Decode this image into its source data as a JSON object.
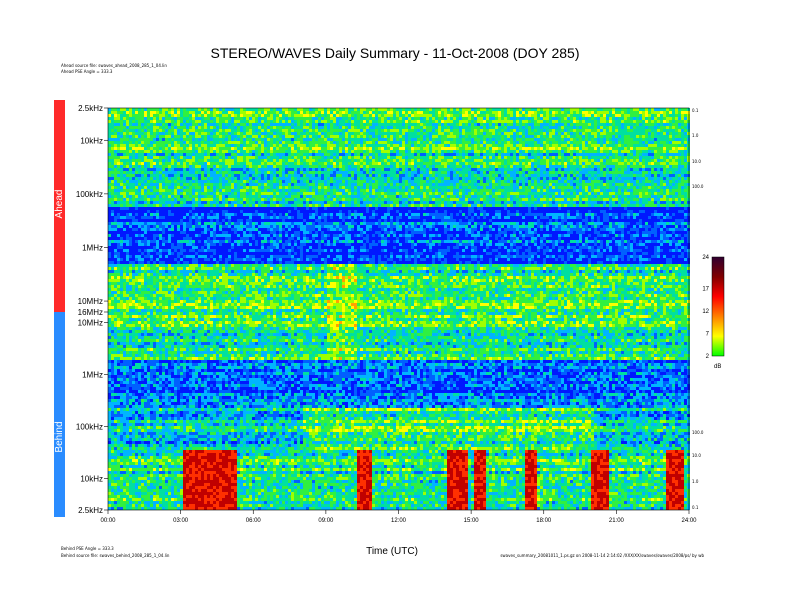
{
  "chart_data": {
    "type": "heatmap",
    "title": "STEREO/WAVES Daily Summary - 11-Oct-2008 (DOY 285)",
    "xlabel": "Time (UTC)",
    "xticks": [
      "00:00",
      "03:00",
      "06:00",
      "09:00",
      "12:00",
      "15:00",
      "18:00",
      "21:00",
      "24:00"
    ],
    "xlim_hours": [
      0,
      24
    ],
    "panels": [
      {
        "name": "Ahead",
        "color": "#ff2a2a",
        "yticks": [
          "2.5kHz",
          "10kHz",
          "100kHz",
          "1MHz",
          "10MHz",
          "16MHz"
        ],
        "yscale": "log",
        "ylim_hz": [
          2500,
          16000000
        ],
        "info_lines": [
          "Ahead source file: swaves_ahead_2008_285_1_04.lin",
          "Ahead PSE Angle = 333.3"
        ],
        "side_ticks": [
          "0.1",
          "1.0",
          "10.0",
          "100.0"
        ]
      },
      {
        "name": "Behind",
        "color": "#2a8cff",
        "yticks": [
          "10MHz",
          "1MHz",
          "100kHz",
          "10kHz",
          "2.5kHz"
        ],
        "yscale": "log",
        "ylim_hz": [
          2500,
          16000000
        ],
        "info_lines": [
          "Behind PSE Angle = 333.3",
          "Behind source file: swaves_behind_2008_285_1_04.lin"
        ],
        "side_ticks": [
          "100.0",
          "10.0",
          "1.0",
          "0.1"
        ]
      }
    ],
    "colorbar": {
      "unit": "dB",
      "ticks": [
        "24",
        "17",
        "12",
        "7",
        "2"
      ],
      "range": [
        2,
        24
      ],
      "colors": [
        "#00ff00",
        "#ffff00",
        "#ff8000",
        "#ff0000",
        "#800000",
        "#300030"
      ]
    },
    "background_colors": {
      "low": "#0018ff",
      "mid": "#00e0a0",
      "high": "#e00000"
    },
    "footer": "swaves_summary_20081011_1.ps.gz on 2008-11-14 2:14:02 /XXX/XX/swaves/swaves/2008/ps/ by wb"
  }
}
